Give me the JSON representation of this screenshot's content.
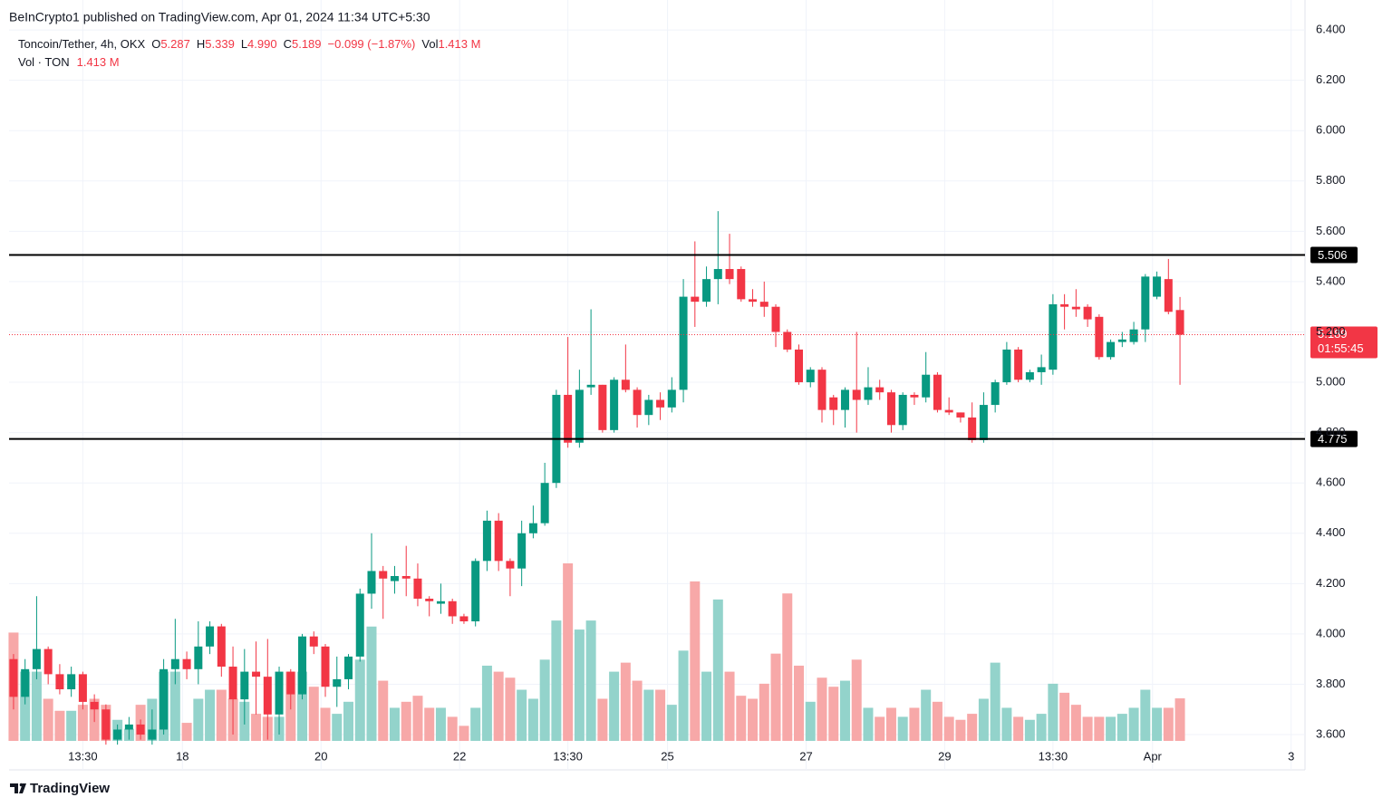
{
  "header": {
    "published": "BeInCrypto1 published on TradingView.com, Apr 01, 2024 11:34 UTC+5:30"
  },
  "legend": {
    "symbol": "Toncoin/Tether, 4h, OKX",
    "o_label": "O",
    "o": "5.287",
    "h_label": "H",
    "h": "5.339",
    "l_label": "L",
    "l": "4.990",
    "c_label": "C",
    "c": "5.189",
    "change": "−0.099 (−1.87%)",
    "vol_label": "Vol",
    "vol": "1.413 M",
    "vol_row_label": "Vol · TON",
    "vol_row": "1.413 M",
    "color": "#f23645"
  },
  "footer": {
    "brand": "TradingView"
  },
  "chart_data": {
    "type": "candlestick",
    "up_color": "#089981",
    "down_color": "#f23645",
    "volume_up_color": "#93d3cb",
    "volume_down_color": "#f7a8a8",
    "grid": true,
    "xlim": [
      15.498,
      34.2
    ],
    "ylim": [
      3.575,
      6.519
    ],
    "xticks": [
      {
        "value": 16.5625,
        "label": "13:30"
      },
      18,
      20,
      22,
      {
        "value": 23.5625,
        "label": "13:30"
      },
      25,
      27,
      29,
      {
        "value": 30.5625,
        "label": "13:30"
      },
      {
        "value": 32,
        "label": "Apr"
      },
      {
        "value": 34,
        "label": "3"
      }
    ],
    "yticks": [
      {
        "value": 3.6,
        "label": "3.600"
      },
      {
        "value": 3.8,
        "label": "3.800"
      },
      {
        "value": 4.0,
        "label": "4.000"
      },
      {
        "value": 4.2,
        "label": "4.200"
      },
      {
        "value": 4.4,
        "label": "4.400"
      },
      {
        "value": 4.6,
        "label": "4.600"
      },
      {
        "value": 4.8,
        "label": "4.800"
      },
      {
        "value": 5.0,
        "label": "5.000"
      },
      {
        "value": 5.2,
        "label": "5.200"
      },
      {
        "value": 5.4,
        "label": "5.400"
      },
      {
        "value": 5.6,
        "label": "5.600"
      },
      {
        "value": 5.8,
        "label": "5.800"
      },
      {
        "value": 6.0,
        "label": "6.000"
      },
      {
        "value": 6.2,
        "label": "6.200"
      },
      {
        "value": 6.4,
        "label": "6.400"
      }
    ],
    "levels": [
      5.506,
      4.775
    ],
    "level_color": "#000000",
    "last_price": 5.189,
    "countdown": "01:55:45",
    "x": [
      15.5625,
      15.7292,
      15.8958,
      16.0625,
      16.2292,
      16.3958,
      16.5625,
      16.7292,
      16.8958,
      17.0625,
      17.2292,
      17.3958,
      17.5625,
      17.7292,
      17.8958,
      18.0625,
      18.2292,
      18.3958,
      18.5625,
      18.7292,
      18.8958,
      19.0625,
      19.2292,
      19.3958,
      19.5625,
      19.7292,
      19.8958,
      20.0625,
      20.2292,
      20.3958,
      20.5625,
      20.7292,
      20.8958,
      21.0625,
      21.2292,
      21.3958,
      21.5625,
      21.7292,
      21.8958,
      22.0625,
      22.2292,
      22.3958,
      22.5625,
      22.7292,
      22.8958,
      23.0625,
      23.2292,
      23.3958,
      23.5625,
      23.7292,
      23.8958,
      24.0625,
      24.2292,
      24.3958,
      24.5625,
      24.7292,
      24.8958,
      25.0625,
      25.2292,
      25.3958,
      25.5625,
      25.7292,
      25.8958,
      26.0625,
      26.2292,
      26.3958,
      26.5625,
      26.7292,
      26.8958,
      27.0625,
      27.2292,
      27.3958,
      27.5625,
      27.7292,
      27.8958,
      28.0625,
      28.2292,
      28.3958,
      28.5625,
      28.7292,
      28.8958,
      29.0625,
      29.2292,
      29.3958,
      29.5625,
      29.7292,
      29.8958,
      30.0625,
      30.2292,
      30.3958,
      30.5625,
      30.7292,
      30.8958,
      31.0625,
      31.2292,
      31.3958,
      31.5625,
      31.7292,
      31.8958,
      32.0625,
      32.2292,
      32.3958
    ],
    "open": [
      3.9,
      3.75,
      3.86,
      3.94,
      3.84,
      3.78,
      3.84,
      3.73,
      3.7,
      3.58,
      3.62,
      3.64,
      3.58,
      3.62,
      3.86,
      3.9,
      3.86,
      3.95,
      4.03,
      3.87,
      3.74,
      3.85,
      3.83,
      3.68,
      3.85,
      3.76,
      3.99,
      3.95,
      3.79,
      3.82,
      3.91,
      4.16,
      4.25,
      4.21,
      4.23,
      4.22,
      4.14,
      4.12,
      4.13,
      4.07,
      4.05,
      4.29,
      4.45,
      4.29,
      4.26,
      4.4,
      4.44,
      4.6,
      4.95,
      4.76,
      4.98,
      4.99,
      4.81,
      5.01,
      4.97,
      4.87,
      4.93,
      4.9,
      4.97,
      5.34,
      5.32,
      5.41,
      5.45,
      5.45,
      5.33,
      5.32,
      5.3,
      5.2,
      5.13,
      5.0,
      5.05,
      4.94,
      4.89,
      4.97,
      4.93,
      4.98,
      4.96,
      4.83,
      4.95,
      4.94,
      5.03,
      4.89,
      4.88,
      4.86,
      4.77,
      4.91,
      5.0,
      5.13,
      5.01,
      5.04,
      5.05,
      5.31,
      5.3,
      5.3,
      5.26,
      5.1,
      5.16,
      5.16,
      5.21,
      5.34,
      5.41,
      5.287
    ],
    "high": [
      3.92,
      3.9,
      4.15,
      3.95,
      3.88,
      3.87,
      3.85,
      3.76,
      3.72,
      3.64,
      3.67,
      3.66,
      3.7,
      3.9,
      4.06,
      3.93,
      4.05,
      4.05,
      4.04,
      3.95,
      3.94,
      3.97,
      3.98,
      3.87,
      3.86,
      4.0,
      4.01,
      3.96,
      3.91,
      3.92,
      4.18,
      4.4,
      4.27,
      4.27,
      4.35,
      4.28,
      4.15,
      4.2,
      4.14,
      4.08,
      4.3,
      4.49,
      4.48,
      4.3,
      4.45,
      4.51,
      4.68,
      4.97,
      5.18,
      5.05,
      5.29,
      4.99,
      5.02,
      5.15,
      4.98,
      4.95,
      4.96,
      5.02,
      5.41,
      5.56,
      5.46,
      5.68,
      5.59,
      5.46,
      5.37,
      5.4,
      5.31,
      5.21,
      5.15,
      5.06,
      5.06,
      4.95,
      4.98,
      5.2,
      5.06,
      5.01,
      4.97,
      4.96,
      4.96,
      5.12,
      5.04,
      4.94,
      4.88,
      4.92,
      4.96,
      5.01,
      5.16,
      5.14,
      5.05,
      5.11,
      5.35,
      5.35,
      5.37,
      5.31,
      5.27,
      5.17,
      5.2,
      5.24,
      5.43,
      5.44,
      5.49,
      5.339
    ],
    "low": [
      3.7,
      3.72,
      3.82,
      3.8,
      3.76,
      3.75,
      3.7,
      3.65,
      3.56,
      3.56,
      3.58,
      3.58,
      3.56,
      3.6,
      3.8,
      3.82,
      3.8,
      3.92,
      3.83,
      3.6,
      3.64,
      3.68,
      3.58,
      3.6,
      3.7,
      3.74,
      3.92,
      3.75,
      3.71,
      3.78,
      3.89,
      4.1,
      4.06,
      4.16,
      4.15,
      4.11,
      4.07,
      4.08,
      4.04,
      4.04,
      4.03,
      4.25,
      4.25,
      4.15,
      4.19,
      4.38,
      4.43,
      4.58,
      4.74,
      4.74,
      4.95,
      4.8,
      4.8,
      4.96,
      4.82,
      4.83,
      4.85,
      4.88,
      4.92,
      5.22,
      5.3,
      5.31,
      5.39,
      5.32,
      5.3,
      5.26,
      5.14,
      5.12,
      4.99,
      4.98,
      4.84,
      4.83,
      4.82,
      4.8,
      4.91,
      4.93,
      4.8,
      4.81,
      4.91,
      4.92,
      4.88,
      4.87,
      4.84,
      4.76,
      4.76,
      4.88,
      4.99,
      5.0,
      5.0,
      4.99,
      5.03,
      5.21,
      5.26,
      5.22,
      5.09,
      5.09,
      5.14,
      5.15,
      5.16,
      5.33,
      5.27,
      4.99
    ],
    "close": [
      3.75,
      3.86,
      3.94,
      3.84,
      3.78,
      3.84,
      3.73,
      3.7,
      3.58,
      3.62,
      3.64,
      3.6,
      3.62,
      3.86,
      3.9,
      3.86,
      3.95,
      4.03,
      3.87,
      3.74,
      3.85,
      3.83,
      3.68,
      3.85,
      3.76,
      3.99,
      3.95,
      3.79,
      3.82,
      3.91,
      4.16,
      4.25,
      4.22,
      4.23,
      4.22,
      4.14,
      4.13,
      4.13,
      4.07,
      4.05,
      4.29,
      4.45,
      4.29,
      4.26,
      4.4,
      4.44,
      4.6,
      4.95,
      4.76,
      4.97,
      4.99,
      4.81,
      5.01,
      4.97,
      4.87,
      4.93,
      4.9,
      4.97,
      5.34,
      5.32,
      5.41,
      5.45,
      5.41,
      5.33,
      5.32,
      5.3,
      5.2,
      5.13,
      5.0,
      5.05,
      4.89,
      4.89,
      4.97,
      4.93,
      4.98,
      4.96,
      4.83,
      4.95,
      4.94,
      5.03,
      4.89,
      4.88,
      4.86,
      4.77,
      4.91,
      5.0,
      5.13,
      5.01,
      5.04,
      5.06,
      5.31,
      5.3,
      5.29,
      5.25,
      5.1,
      5.16,
      5.17,
      5.21,
      5.42,
      5.42,
      5.28,
      5.189
    ],
    "volume": [
      3.6,
      2.3,
      2.3,
      1.4,
      1.0,
      1.0,
      1.2,
      1.4,
      1.2,
      0.7,
      0.4,
      1.2,
      1.4,
      2.3,
      2.3,
      0.6,
      1.4,
      1.7,
      1.7,
      1.4,
      1.3,
      0.9,
      0.8,
      0.8,
      2.3,
      2.3,
      1.8,
      1.1,
      0.9,
      1.3,
      2.7,
      3.8,
      2.0,
      1.1,
      1.3,
      1.5,
      1.1,
      1.1,
      0.8,
      0.5,
      1.1,
      2.5,
      2.3,
      2.1,
      1.7,
      1.4,
      2.7,
      4.0,
      5.9,
      3.7,
      4.0,
      1.4,
      2.3,
      2.6,
      2.0,
      1.7,
      1.7,
      1.2,
      3.0,
      5.3,
      2.3,
      4.7,
      2.3,
      1.5,
      1.4,
      1.9,
      2.9,
      4.9,
      2.5,
      1.3,
      2.1,
      1.8,
      2.0,
      2.7,
      1.1,
      0.8,
      1.1,
      0.8,
      1.1,
      1.7,
      1.3,
      0.8,
      0.7,
      0.9,
      1.4,
      2.6,
      1.1,
      0.8,
      0.7,
      0.9,
      1.9,
      1.6,
      1.2,
      0.8,
      0.8,
      0.8,
      0.9,
      1.1,
      1.7,
      1.1,
      1.1,
      1.413
    ]
  }
}
